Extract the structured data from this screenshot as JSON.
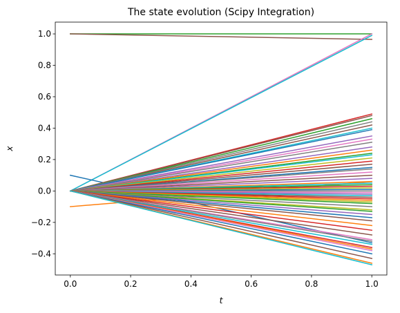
{
  "chart_data": {
    "type": "line",
    "title": "The state evolution (Scipy Integration)",
    "xlabel": "t",
    "ylabel": "x",
    "xlim": [
      -0.05,
      1.05
    ],
    "ylim": [
      -0.535,
      1.075
    ],
    "xticks": [
      0.0,
      0.2,
      0.4,
      0.6,
      0.8,
      1.0
    ],
    "xtick_labels": [
      "0.0",
      "0.2",
      "0.4",
      "0.6",
      "0.8",
      "1.0"
    ],
    "yticks": [
      -0.4,
      -0.2,
      0.0,
      0.2,
      0.4,
      0.6,
      0.8,
      1.0
    ],
    "ytick_labels": [
      "−0.4",
      "−0.2",
      "0.0",
      "0.2",
      "0.4",
      "0.6",
      "0.8",
      "1.0"
    ],
    "grid": false,
    "legend": "none",
    "palette": [
      "#1f77b4",
      "#ff7f0e",
      "#2ca02c",
      "#d62728",
      "#9467bd",
      "#8c564b",
      "#e377c2",
      "#7f7f7f",
      "#bcbd22",
      "#17becf"
    ],
    "series": [
      {
        "x": [
          0,
          1
        ],
        "y": [
          1.0,
          1.0
        ],
        "color": "#2ca02c"
      },
      {
        "x": [
          0,
          1
        ],
        "y": [
          1.0,
          0.965
        ],
        "color": "#8c564b"
      },
      {
        "x": [
          0,
          1
        ],
        "y": [
          0.0,
          1.0
        ],
        "color": "#e377c2"
      },
      {
        "x": [
          0,
          1
        ],
        "y": [
          0.0,
          0.99
        ],
        "color": "#17becf"
      },
      {
        "x": [
          0,
          1
        ],
        "y": [
          0.1,
          -0.33
        ],
        "color": "#1f77b4"
      },
      {
        "x": [
          0,
          1
        ],
        "y": [
          -0.1,
          0.06
        ],
        "color": "#ff7f0e"
      },
      {
        "x": [
          0,
          1
        ],
        "y": [
          0.0,
          0.49
        ],
        "color": "#d62728"
      },
      {
        "x": [
          0,
          1
        ],
        "y": [
          0.0,
          0.48
        ],
        "color": "#8c564b"
      },
      {
        "x": [
          0,
          1
        ],
        "y": [
          0.0,
          0.46
        ],
        "color": "#2ca02c"
      },
      {
        "x": [
          0,
          1
        ],
        "y": [
          0.0,
          0.44
        ],
        "color": "#7f7f7f"
      },
      {
        "x": [
          0,
          1
        ],
        "y": [
          0.0,
          0.42
        ],
        "color": "#8c564b"
      },
      {
        "x": [
          0,
          1
        ],
        "y": [
          0.0,
          0.4
        ],
        "color": "#17becf"
      },
      {
        "x": [
          0,
          1
        ],
        "y": [
          0.0,
          0.39
        ],
        "color": "#1f77b4"
      },
      {
        "x": [
          0,
          1
        ],
        "y": [
          0.0,
          0.35
        ],
        "color": "#9467bd"
      },
      {
        "x": [
          0,
          1
        ],
        "y": [
          0.0,
          0.33
        ],
        "color": "#e377c2"
      },
      {
        "x": [
          0,
          1
        ],
        "y": [
          0.0,
          0.31
        ],
        "color": "#7f7f7f"
      },
      {
        "x": [
          0,
          1
        ],
        "y": [
          0.0,
          0.28
        ],
        "color": "#9467bd"
      },
      {
        "x": [
          0,
          1
        ],
        "y": [
          0.0,
          0.26
        ],
        "color": "#ff7f0e"
      },
      {
        "x": [
          0,
          1
        ],
        "y": [
          0.0,
          0.24
        ],
        "color": "#2ca02c"
      },
      {
        "x": [
          0,
          1
        ],
        "y": [
          0.0,
          0.23
        ],
        "color": "#17becf"
      },
      {
        "x": [
          0,
          1
        ],
        "y": [
          0.0,
          0.21
        ],
        "color": "#bcbd22"
      },
      {
        "x": [
          0,
          1
        ],
        "y": [
          0.0,
          0.19
        ],
        "color": "#d62728"
      },
      {
        "x": [
          0,
          1
        ],
        "y": [
          0.0,
          0.17
        ],
        "color": "#8c564b"
      },
      {
        "x": [
          0,
          1
        ],
        "y": [
          0.0,
          0.15
        ],
        "color": "#1f77b4"
      },
      {
        "x": [
          0,
          1
        ],
        "y": [
          0.0,
          0.14
        ],
        "color": "#7f7f7f"
      },
      {
        "x": [
          0,
          1
        ],
        "y": [
          0.0,
          0.12
        ],
        "color": "#e377c2"
      },
      {
        "x": [
          0,
          1
        ],
        "y": [
          0.0,
          0.1
        ],
        "color": "#8c564b"
      },
      {
        "x": [
          0,
          1
        ],
        "y": [
          0.0,
          0.08
        ],
        "color": "#9467bd"
      },
      {
        "x": [
          0,
          1
        ],
        "y": [
          0.0,
          0.06
        ],
        "color": "#ff7f0e"
      },
      {
        "x": [
          0,
          1
        ],
        "y": [
          0.0,
          0.05
        ],
        "color": "#17becf"
      },
      {
        "x": [
          0,
          1
        ],
        "y": [
          0.0,
          0.04
        ],
        "color": "#2ca02c"
      },
      {
        "x": [
          0,
          1
        ],
        "y": [
          0.0,
          0.03
        ],
        "color": "#d62728"
      },
      {
        "x": [
          0,
          1
        ],
        "y": [
          0.0,
          0.02
        ],
        "color": "#bcbd22"
      },
      {
        "x": [
          0,
          1
        ],
        "y": [
          0.0,
          0.01
        ],
        "color": "#1f77b4"
      },
      {
        "x": [
          0,
          1
        ],
        "y": [
          0.0,
          0.0
        ],
        "color": "#7f7f7f"
      },
      {
        "x": [
          0,
          1
        ],
        "y": [
          0.0,
          -0.01
        ],
        "color": "#e377c2"
      },
      {
        "x": [
          0,
          1
        ],
        "y": [
          0.0,
          -0.02
        ],
        "color": "#9467bd"
      },
      {
        "x": [
          0,
          1
        ],
        "y": [
          0.0,
          -0.03
        ],
        "color": "#17becf"
      },
      {
        "x": [
          0,
          1
        ],
        "y": [
          0.0,
          -0.04
        ],
        "color": "#8c564b"
      },
      {
        "x": [
          0,
          1
        ],
        "y": [
          0.0,
          -0.05
        ],
        "color": "#d62728"
      },
      {
        "x": [
          0,
          1
        ],
        "y": [
          0.0,
          -0.06
        ],
        "color": "#ff7f0e"
      },
      {
        "x": [
          0,
          1
        ],
        "y": [
          0.0,
          -0.07
        ],
        "color": "#bcbd22"
      },
      {
        "x": [
          0,
          1
        ],
        "y": [
          0.0,
          -0.08
        ],
        "color": "#2ca02c"
      },
      {
        "x": [
          0,
          1
        ],
        "y": [
          0.0,
          -0.1
        ],
        "color": "#7f7f7f"
      },
      {
        "x": [
          0,
          1
        ],
        "y": [
          0.0,
          -0.12
        ],
        "color": "#bcbd22"
      },
      {
        "x": [
          0,
          1
        ],
        "y": [
          0.0,
          -0.13
        ],
        "color": "#2ca02c"
      },
      {
        "x": [
          0,
          1
        ],
        "y": [
          0.0,
          -0.15
        ],
        "color": "#9467bd"
      },
      {
        "x": [
          0,
          1
        ],
        "y": [
          0.0,
          -0.17
        ],
        "color": "#1f77b4"
      },
      {
        "x": [
          0,
          1
        ],
        "y": [
          0.0,
          -0.19
        ],
        "color": "#8c564b"
      },
      {
        "x": [
          0,
          1
        ],
        "y": [
          0.0,
          -0.22
        ],
        "color": "#ff7f0e"
      },
      {
        "x": [
          0,
          1
        ],
        "y": [
          0.0,
          -0.25
        ],
        "color": "#d62728"
      },
      {
        "x": [
          0,
          1
        ],
        "y": [
          0.0,
          -0.28
        ],
        "color": "#8c564b"
      },
      {
        "x": [
          0,
          1
        ],
        "y": [
          0.0,
          -0.31
        ],
        "color": "#e377c2"
      },
      {
        "x": [
          0,
          1
        ],
        "y": [
          0.0,
          -0.32
        ],
        "color": "#7f7f7f"
      },
      {
        "x": [
          0,
          1
        ],
        "y": [
          0.0,
          -0.34
        ],
        "color": "#17becf"
      },
      {
        "x": [
          0,
          1
        ],
        "y": [
          0.0,
          -0.36
        ],
        "color": "#d62728"
      },
      {
        "x": [
          0,
          1
        ],
        "y": [
          0.0,
          -0.37
        ],
        "color": "#ff7f0e"
      },
      {
        "x": [
          0,
          1
        ],
        "y": [
          0.0,
          -0.38
        ],
        "color": "#e377c2"
      },
      {
        "x": [
          0,
          1
        ],
        "y": [
          0.0,
          -0.4
        ],
        "color": "#1f77b4"
      },
      {
        "x": [
          0,
          1
        ],
        "y": [
          0.0,
          -0.43
        ],
        "color": "#8c564b"
      },
      {
        "x": [
          0,
          1
        ],
        "y": [
          0.0,
          -0.46
        ],
        "color": "#ff7f0e"
      },
      {
        "x": [
          0,
          1
        ],
        "y": [
          0.0,
          -0.47
        ],
        "color": "#17becf"
      }
    ]
  }
}
